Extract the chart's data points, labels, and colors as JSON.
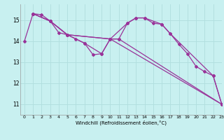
{
  "xlabel": "Windchill (Refroidissement éolien,°C)",
  "background_color": "#c8f0f0",
  "grid_color": "#b0dede",
  "line_color": "#993399",
  "xlim": [
    -0.5,
    23
  ],
  "ylim": [
    10.5,
    15.75
  ],
  "yticks": [
    11,
    12,
    13,
    14,
    15
  ],
  "xticks": [
    0,
    1,
    2,
    3,
    4,
    5,
    6,
    7,
    8,
    9,
    10,
    11,
    12,
    13,
    14,
    15,
    16,
    17,
    18,
    19,
    20,
    21,
    22,
    23
  ],
  "series": [
    {
      "x": [
        0,
        1,
        2,
        3,
        4,
        5,
        6,
        7,
        8,
        9,
        10,
        11,
        12,
        13,
        14,
        15,
        16,
        17,
        18,
        19,
        20,
        21,
        22,
        23
      ],
      "y": [
        14.0,
        15.3,
        15.25,
        14.95,
        14.4,
        14.3,
        14.1,
        13.9,
        13.35,
        13.4,
        14.1,
        14.1,
        14.85,
        15.1,
        15.1,
        14.85,
        14.8,
        14.35,
        13.85,
        13.4,
        12.8,
        12.55,
        12.35,
        11.0
      ]
    },
    {
      "x": [
        1,
        3,
        5,
        10,
        12,
        13,
        14,
        16,
        17,
        22,
        23
      ],
      "y": [
        15.3,
        14.95,
        14.3,
        14.1,
        14.85,
        15.1,
        15.1,
        14.8,
        14.35,
        12.35,
        11.0
      ]
    },
    {
      "x": [
        1,
        3,
        5,
        7,
        9,
        10,
        11,
        23
      ],
      "y": [
        15.3,
        14.95,
        14.3,
        13.9,
        13.4,
        14.1,
        14.1,
        11.0
      ]
    },
    {
      "x": [
        1,
        3,
        5,
        10,
        23
      ],
      "y": [
        15.3,
        14.95,
        14.3,
        14.1,
        11.0
      ]
    }
  ]
}
